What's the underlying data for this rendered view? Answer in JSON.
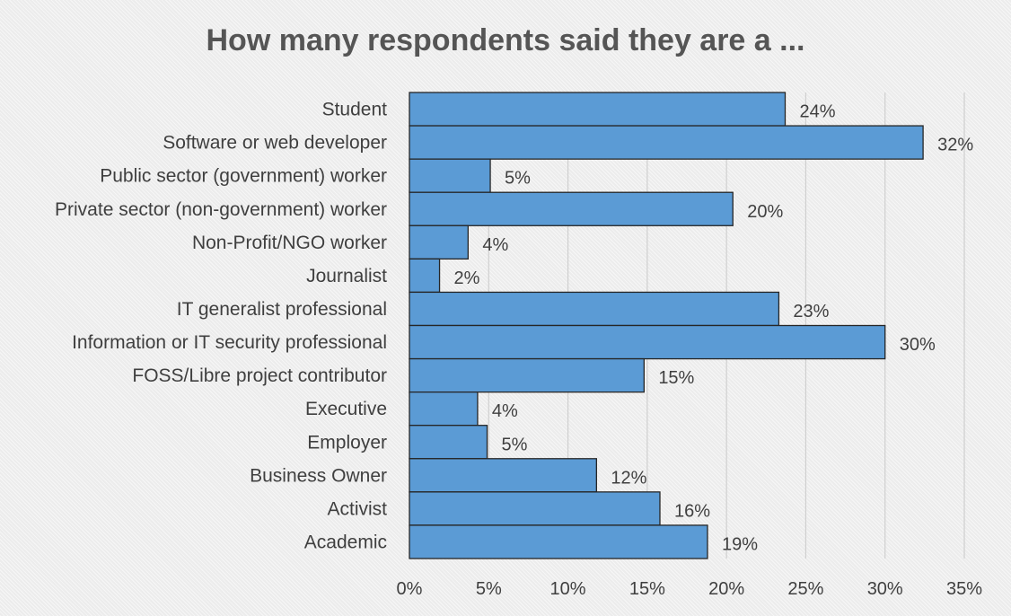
{
  "chart_data": {
    "type": "bar",
    "orientation": "horizontal",
    "title": "How many respondents said they are a ...",
    "xlabel": "",
    "ylabel": "",
    "xlim": [
      0,
      35
    ],
    "ticks": [
      0,
      5,
      10,
      15,
      20,
      25,
      30,
      35
    ],
    "tick_labels": [
      "0%",
      "5%",
      "10%",
      "15%",
      "20%",
      "25%",
      "30%",
      "35%"
    ],
    "grid": true,
    "legend": "none",
    "bar_color": "#5b9bd5",
    "bar_edge_color": "#262626",
    "categories": [
      "Student",
      "Software or web developer",
      "Public sector (government) worker",
      "Private sector (non-government) worker",
      "Non-Profit/NGO worker",
      "Journalist",
      "IT generalist professional",
      "Information or IT security professional",
      "FOSS/Libre project contributor",
      "Executive",
      "Employer",
      "Business Owner",
      "Activist",
      "Academic"
    ],
    "values": [
      23.7,
      32.4,
      5.1,
      20.4,
      3.7,
      1.9,
      23.3,
      30.0,
      14.8,
      4.3,
      4.9,
      11.8,
      15.8,
      18.8
    ],
    "data_labels": [
      "24%",
      "32%",
      "5%",
      "20%",
      "4%",
      "2%",
      "23%",
      "30%",
      "15%",
      "4%",
      "5%",
      "12%",
      "16%",
      "19%"
    ]
  }
}
